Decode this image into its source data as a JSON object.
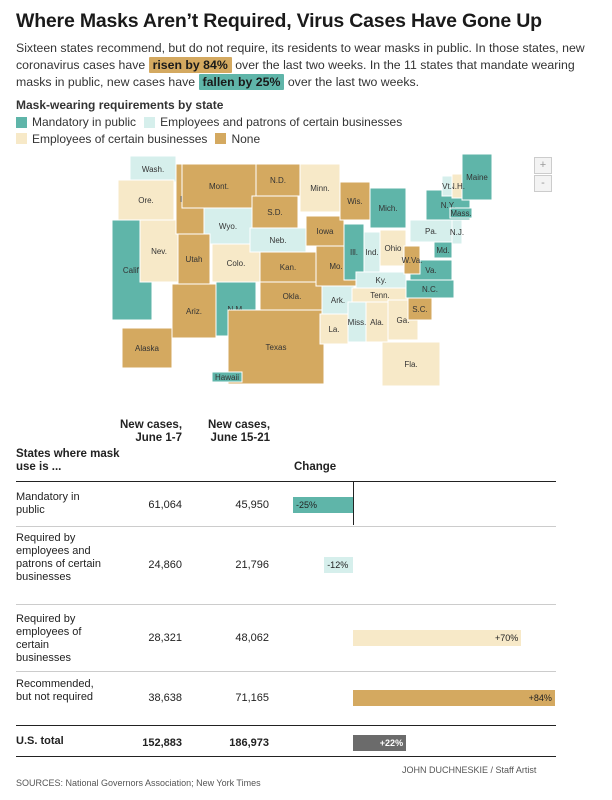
{
  "headline": "Where Masks Aren’t Required, Virus Cases Have Gone Up",
  "intro": {
    "part1": "Sixteen states recommend, but do not require, its residents to wear masks in public. In those states, new coronavirus cases have",
    "highlight_up": "risen by 84%",
    "part2": "over the last two weeks. In the 11 states that mandate wearing masks in public, new cases have",
    "highlight_down": "fallen by 25%",
    "part3": "over the last two weeks."
  },
  "legend": {
    "title": "Mask-wearing requirements by state",
    "items": [
      {
        "label": "Mandatory in public",
        "color": "#5fb5a9"
      },
      {
        "label": "Employees and patrons of certain businesses",
        "color": "#d6efec"
      },
      {
        "label": "Employees of certain businesses",
        "color": "#f7e9c8"
      },
      {
        "label": "None",
        "color": "#d4a960"
      }
    ]
  },
  "map": {
    "zoom_in": "+",
    "zoom_out": "-",
    "states": [
      {
        "abbr": "Wash.",
        "cat": "patrons"
      },
      {
        "abbr": "Ore.",
        "cat": "employees"
      },
      {
        "abbr": "Calif.",
        "cat": "mandatory"
      },
      {
        "abbr": "Nev.",
        "cat": "employees"
      },
      {
        "abbr": "Idaho",
        "cat": "none"
      },
      {
        "abbr": "Mont.",
        "cat": "none"
      },
      {
        "abbr": "Wyo.",
        "cat": "patrons"
      },
      {
        "abbr": "Utah",
        "cat": "none"
      },
      {
        "abbr": "Colo.",
        "cat": "employees"
      },
      {
        "abbr": "Ariz.",
        "cat": "none"
      },
      {
        "abbr": "N.M.",
        "cat": "mandatory"
      },
      {
        "abbr": "N.D.",
        "cat": "none"
      },
      {
        "abbr": "S.D.",
        "cat": "none"
      },
      {
        "abbr": "Neb.",
        "cat": "patrons"
      },
      {
        "abbr": "Kan.",
        "cat": "none"
      },
      {
        "abbr": "Okla.",
        "cat": "none"
      },
      {
        "abbr": "Texas",
        "cat": "none"
      },
      {
        "abbr": "Minn.",
        "cat": "employees"
      },
      {
        "abbr": "Iowa",
        "cat": "none"
      },
      {
        "abbr": "Mo.",
        "cat": "none"
      },
      {
        "abbr": "Ark.",
        "cat": "patrons"
      },
      {
        "abbr": "La.",
        "cat": "employees"
      },
      {
        "abbr": "Wis.",
        "cat": "none"
      },
      {
        "abbr": "Ill.",
        "cat": "mandatory"
      },
      {
        "abbr": "Mich.",
        "cat": "mandatory"
      },
      {
        "abbr": "Ind.",
        "cat": "patrons"
      },
      {
        "abbr": "Ohio",
        "cat": "employees"
      },
      {
        "abbr": "Ky.",
        "cat": "patrons"
      },
      {
        "abbr": "Tenn.",
        "cat": "employees"
      },
      {
        "abbr": "Miss.",
        "cat": "patrons"
      },
      {
        "abbr": "Ala.",
        "cat": "employees"
      },
      {
        "abbr": "Ga.",
        "cat": "employees"
      },
      {
        "abbr": "Fla.",
        "cat": "employees"
      },
      {
        "abbr": "S.C.",
        "cat": "none"
      },
      {
        "abbr": "N.C.",
        "cat": "mandatory"
      },
      {
        "abbr": "Va.",
        "cat": "mandatory"
      },
      {
        "abbr": "W.Va.",
        "cat": "none"
      },
      {
        "abbr": "Pa.",
        "cat": "patrons"
      },
      {
        "abbr": "N.Y.",
        "cat": "mandatory"
      },
      {
        "abbr": "N.J.",
        "cat": "patrons"
      },
      {
        "abbr": "Maine",
        "cat": "mandatory"
      },
      {
        "abbr": "N.H.",
        "cat": "employees"
      },
      {
        "abbr": "Vt.",
        "cat": "patrons"
      },
      {
        "abbr": "Mass.",
        "cat": "mandatory"
      },
      {
        "abbr": "Md.",
        "cat": "mandatory"
      },
      {
        "abbr": "Alaska",
        "cat": "none"
      },
      {
        "abbr": "Hawaii",
        "cat": "mandatory"
      }
    ]
  },
  "chart_data": {
    "type": "table",
    "columns": [
      "States where mask use is ...",
      "New cases, June 1-7",
      "New cases, June 15-21",
      "Change"
    ],
    "rows": [
      {
        "label": "Mandatory in public",
        "june_1_7": "61,064",
        "june_15_21": "45,950",
        "change": -25,
        "change_label": "-25%",
        "color": "#5fb5a9"
      },
      {
        "label": "Required by employees and patrons of certain businesses",
        "june_1_7": "24,860",
        "june_15_21": "21,796",
        "change": -12,
        "change_label": "-12%",
        "color": "#d6efec"
      },
      {
        "label": "Required by employees of certain businesses",
        "june_1_7": "28,321",
        "june_15_21": "48,062",
        "change": 70,
        "change_label": "+70%",
        "color": "#f7e9c8"
      },
      {
        "label": "Recommended, but not required",
        "june_1_7": "38,638",
        "june_15_21": "71,165",
        "change": 84,
        "change_label": "+84%",
        "color": "#d4a960"
      }
    ],
    "total": {
      "label": "U.S. total",
      "june_1_7": "152,883",
      "june_15_21": "186,973",
      "change": 22,
      "change_label": "+22%",
      "color": "#6b6b6b"
    }
  },
  "table_head": {
    "col1": "States where mask use is ...",
    "col2": "New cases, June 1-7",
    "col3": "New cases, June 15-21",
    "col4": "Change"
  },
  "credit": "JOHN DUCHNESKIE / Staff Artist",
  "sources": "SOURCES: National Governors Association; New York Times"
}
